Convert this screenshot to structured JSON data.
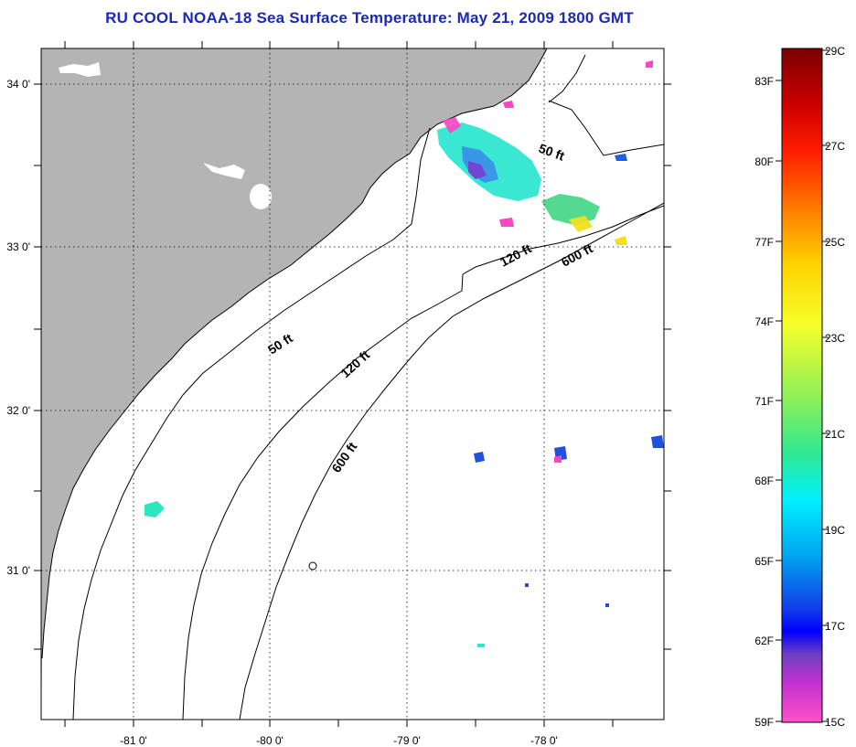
{
  "title": "RU COOL  NOAA-18  Sea Surface Temperature:  May 21, 2009 1800 GMT",
  "colors": {
    "land": "#b4b4b4",
    "ocean": "#ffffff",
    "coastline": "#000000",
    "title": "#1a2ab5"
  },
  "map": {
    "lon_labels": [
      "-81 0'",
      "-80 0'",
      "-79 0'",
      "-78 0'"
    ],
    "lat_labels": [
      "34 0'",
      "33 0'",
      "32 0'",
      "31 0'"
    ],
    "contour_labels": [
      "50 ft",
      "120 ft",
      "600 ft",
      "50 ft",
      "120 ft",
      "600 ft"
    ]
  },
  "colorbar": {
    "fahrenheit_labels": [
      "83F",
      "80F",
      "77F",
      "74F",
      "71F",
      "68F",
      "65F",
      "62F",
      "59F"
    ],
    "celsius_labels": [
      "29C",
      "27C",
      "25C",
      "23C",
      "21C",
      "19C",
      "17C",
      "15C"
    ]
  }
}
